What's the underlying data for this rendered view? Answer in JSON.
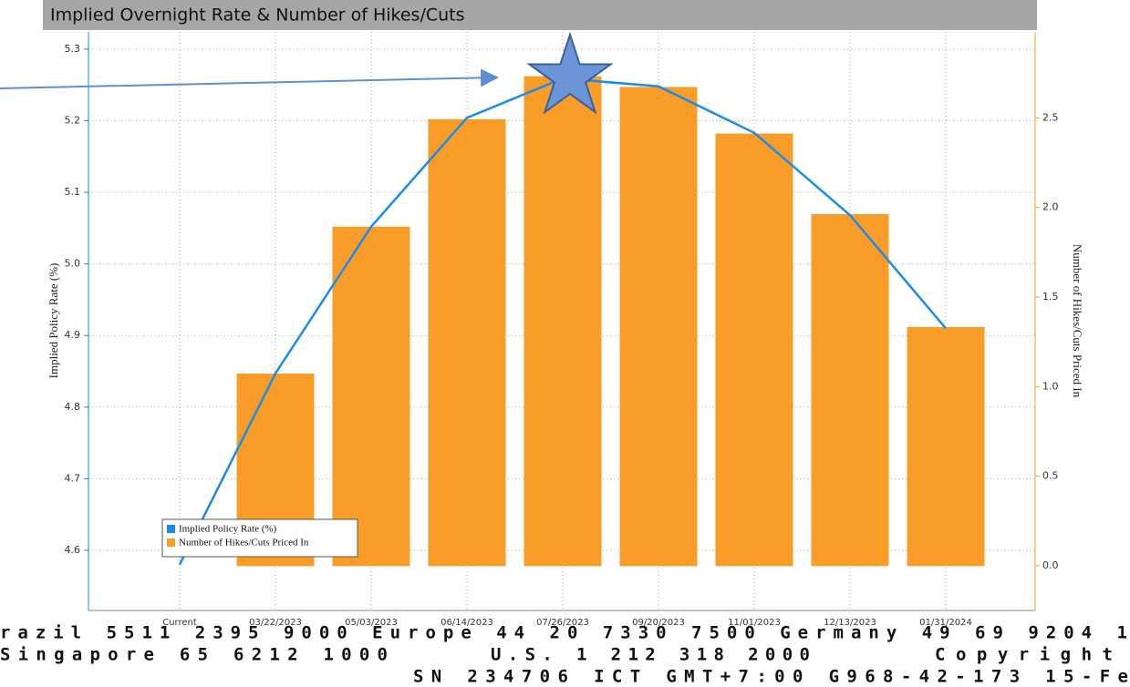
{
  "chart_data": {
    "type": "bar",
    "title": "Implied Overnight Rate & Number of Hikes/Cuts",
    "ylabel": "Implied Policy Rate (%)",
    "y2label": "Number of Hikes/Cuts Priced In",
    "categories": [
      "Current",
      "03/22/2023",
      "05/03/2023",
      "06/14/2023",
      "07/26/2023",
      "09/20/2023",
      "11/01/2023",
      "12/13/2023",
      "01/31/2024"
    ],
    "series": [
      {
        "name": "Implied Policy Rate (%)",
        "type": "line",
        "color": "#1a8cf0",
        "axis": "y",
        "values": [
          4.58,
          4.847,
          5.052,
          5.204,
          5.259,
          5.248,
          5.183,
          5.068,
          4.91
        ]
      },
      {
        "name": "Number of Hikes/Cuts Priced In",
        "type": "bar",
        "color": "#f99d28",
        "axis": "y2",
        "values": [
          0,
          1.07,
          1.89,
          2.49,
          2.73,
          2.67,
          2.41,
          1.96,
          1.33
        ]
      }
    ],
    "ylim": [
      4.516,
      5.324
    ],
    "yticks": [
      4.6,
      4.7,
      4.8,
      4.9,
      {
        "value": 5,
        "label": "5.0"
      },
      5.1,
      5.2,
      5.3
    ],
    "y2lim": [
      -0.25,
      2.98
    ],
    "y2ticks": [
      {
        "value": 0,
        "label": "0.0"
      },
      0.5,
      {
        "value": 1,
        "label": "1.0"
      },
      1.5,
      {
        "value": 2,
        "label": "2.0"
      },
      2.5
    ],
    "grid": true,
    "legend": "lower left"
  },
  "footer": {
    "line1": "razil 5511 2395 9000 Europe 44 20 7330 7500 Germany 49 69 9204 1",
    "line2": [
      "Singapore 65 6212 1000",
      "U.S. 1 212 318 2000",
      "Copyright"
    ],
    "line3": "SN 234706 ICT GMT+7:00 G968-42-173 15-Fe"
  }
}
